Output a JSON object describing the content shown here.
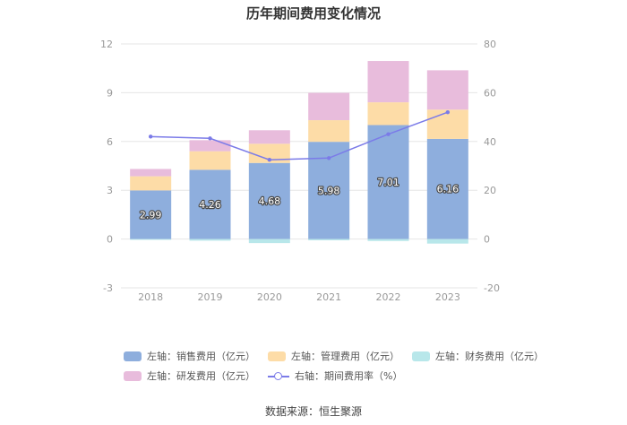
{
  "colors": {
    "sales": "#8eaedd",
    "admin": "#fddca7",
    "finance": "#b8e7ea",
    "rnd": "#e8bcdc",
    "rate": "#7b7be8",
    "axis_text": "#999999",
    "grid": "#e6e6e6"
  },
  "chart_data": {
    "type": "bar",
    "title": "历年期间费用变化情况",
    "categories": [
      "2018",
      "2019",
      "2020",
      "2021",
      "2022",
      "2023"
    ],
    "series": [
      {
        "name": "左轴：销售费用（亿元）",
        "key": "sales",
        "axis": "left",
        "values": [
          2.99,
          4.26,
          4.68,
          5.98,
          7.01,
          6.16
        ]
      },
      {
        "name": "左轴：管理费用（亿元）",
        "key": "admin",
        "axis": "left",
        "values": [
          0.87,
          1.14,
          1.18,
          1.33,
          1.4,
          1.8
        ]
      },
      {
        "name": "左轴：财务费用（亿元）",
        "key": "finance",
        "axis": "left",
        "values": [
          -0.05,
          -0.1,
          -0.25,
          -0.08,
          -0.12,
          -0.28
        ]
      },
      {
        "name": "左轴：研发费用（亿元）",
        "key": "rnd",
        "axis": "left",
        "values": [
          0.45,
          0.68,
          0.83,
          1.68,
          2.54,
          2.42
        ]
      },
      {
        "name": "右轴：期间费用率（%）",
        "key": "rate",
        "axis": "right",
        "type": "line",
        "values": [
          42,
          41.3,
          32.5,
          33.2,
          43,
          52
        ]
      }
    ],
    "bar_labels": [
      "2.99",
      "4.26",
      "4.68",
      "5.98",
      "7.01",
      "6.16"
    ],
    "y_left": {
      "ticks": [
        "12",
        "9",
        "6",
        "3",
        "0",
        "-3"
      ],
      "range": [
        -3,
        12
      ]
    },
    "y_right": {
      "ticks": [
        "80",
        "60",
        "40",
        "20",
        "0",
        "-20"
      ],
      "range": [
        -20,
        80
      ]
    },
    "grid": true,
    "legend_position": "bottom"
  },
  "legend": {
    "sales": "左轴：销售费用（亿元）",
    "admin": "左轴：管理费用（亿元）",
    "finance": "左轴：财务费用（亿元）",
    "rnd": "左轴：研发费用（亿元）",
    "rate": "右轴：期间费用率（%）"
  },
  "source": "数据来源：恒生聚源"
}
